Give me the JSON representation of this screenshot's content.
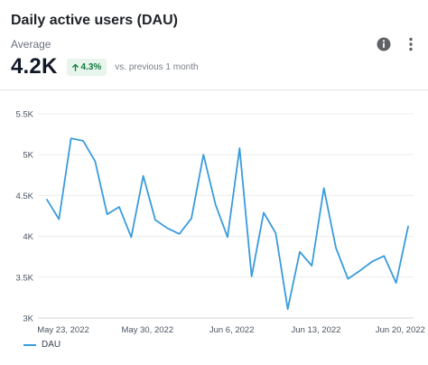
{
  "header": {
    "title": "Daily active users (DAU)",
    "subtitle": "Average",
    "metric_value": "4.2K",
    "change": "4.3%",
    "comparison": "vs. previous 1 month"
  },
  "icons": {
    "info": "info-icon",
    "more": "more-vertical-icon",
    "change_arrow": "arrow-up-icon"
  },
  "colors": {
    "series": "#3a9bdc",
    "positive": "#137a3e",
    "positive_bg": "#e7f5ec"
  },
  "chart_data": {
    "type": "line",
    "title": "",
    "xlabel": "",
    "ylabel": "",
    "grid": true,
    "legend_placement": "bottom-left",
    "ylim": [
      3000,
      5500
    ],
    "y_ticks": [
      {
        "value": 5500,
        "label": "5.5K"
      },
      {
        "value": 5000,
        "label": "5K"
      },
      {
        "value": 4500,
        "label": "4.5K"
      },
      {
        "value": 4000,
        "label": "4K"
      },
      {
        "value": 3500,
        "label": "3.5K"
      },
      {
        "value": 3000,
        "label": "3K"
      }
    ],
    "x_ticks": [
      {
        "index": 0,
        "label": "May 23, 2022"
      },
      {
        "index": 7,
        "label": "May 30, 2022"
      },
      {
        "index": 14,
        "label": "Jun 6, 2022"
      },
      {
        "index": 21,
        "label": "Jun 13, 2022"
      },
      {
        "index": 28,
        "label": "Jun 20, 2022"
      }
    ],
    "series": [
      {
        "name": "DAU",
        "x": [
          "2022-05-23",
          "2022-05-24",
          "2022-05-25",
          "2022-05-26",
          "2022-05-27",
          "2022-05-28",
          "2022-05-29",
          "2022-05-30",
          "2022-05-31",
          "2022-06-01",
          "2022-06-02",
          "2022-06-03",
          "2022-06-04",
          "2022-06-05",
          "2022-06-06",
          "2022-06-07",
          "2022-06-08",
          "2022-06-09",
          "2022-06-10",
          "2022-06-11",
          "2022-06-12",
          "2022-06-13",
          "2022-06-14",
          "2022-06-15",
          "2022-06-16",
          "2022-06-17",
          "2022-06-18",
          "2022-06-19",
          "2022-06-20",
          "2022-06-21",
          "2022-06-22"
        ],
        "values": [
          4450,
          4210,
          5200,
          5170,
          4920,
          4270,
          4360,
          3990,
          4740,
          4200,
          4100,
          4030,
          4220,
          5000,
          4390,
          3990,
          5080,
          3510,
          4290,
          4040,
          3110,
          3810,
          3640,
          4590,
          3860,
          3480,
          3580,
          3690,
          3760,
          3430,
          4120
        ]
      }
    ]
  }
}
